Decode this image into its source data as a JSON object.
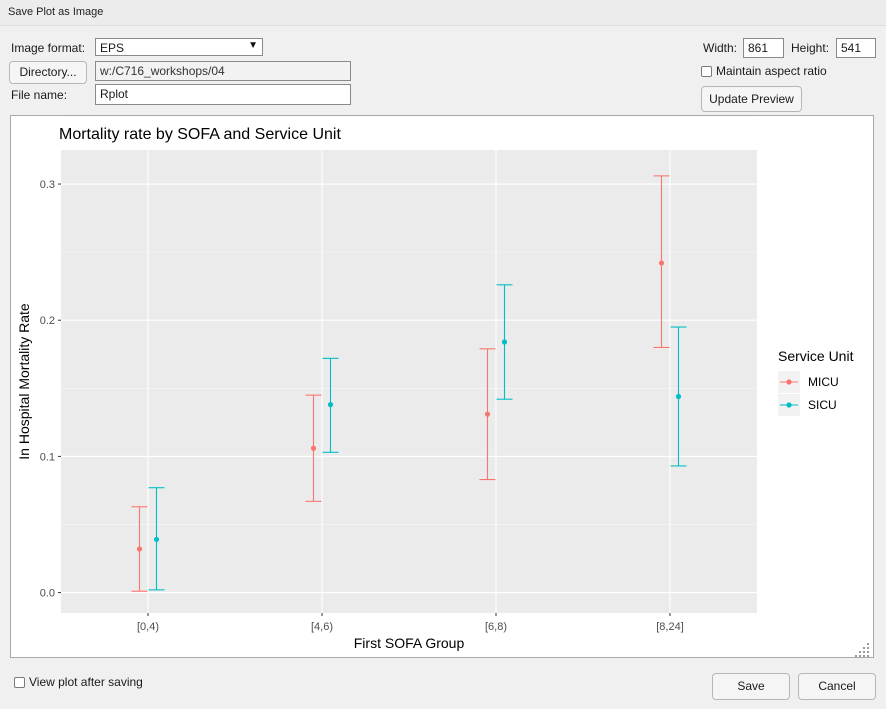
{
  "window": {
    "title": "Save Plot as Image"
  },
  "form": {
    "image_format_label": "Image format:",
    "image_format_value": "EPS",
    "directory_button": "Directory...",
    "directory_value": "w:/C716_workshops/04",
    "file_name_label": "File name:",
    "file_name_value": "Rplot",
    "width_label": "Width:",
    "width_value": "861",
    "height_label": "Height:",
    "height_value": "541",
    "maintain_aspect_label": "Maintain aspect ratio",
    "maintain_aspect_checked": false,
    "update_preview_button": "Update Preview"
  },
  "footer": {
    "view_after_saving_label": "View plot after saving",
    "view_after_saving_checked": false,
    "save_button": "Save",
    "cancel_button": "Cancel"
  },
  "chart_data": {
    "type": "scatter",
    "title": "Mortality rate by SOFA and Service Unit",
    "xlabel": "First SOFA Group",
    "ylabel": "In Hospital Mortality Rate",
    "categories": [
      "[0,4)",
      "[4,6)",
      "[6,8)",
      "[8,24]"
    ],
    "yticks": [
      "0.0",
      "0.1",
      "0.2",
      "0.3"
    ],
    "ylim": [
      -0.015,
      0.325
    ],
    "grid": true,
    "legend": {
      "title": "Service Unit",
      "position": "right"
    },
    "series": [
      {
        "name": "MICU",
        "color": "#F8766D",
        "values": [
          0.032,
          0.106,
          0.131,
          0.242
        ],
        "lower": [
          0.001,
          0.067,
          0.083,
          0.18
        ],
        "upper": [
          0.063,
          0.145,
          0.179,
          0.306
        ]
      },
      {
        "name": "SICU",
        "color": "#00BFC4",
        "values": [
          0.039,
          0.138,
          0.184,
          0.144
        ],
        "lower": [
          0.002,
          0.103,
          0.142,
          0.093
        ],
        "upper": [
          0.077,
          0.172,
          0.226,
          0.195
        ]
      }
    ]
  }
}
